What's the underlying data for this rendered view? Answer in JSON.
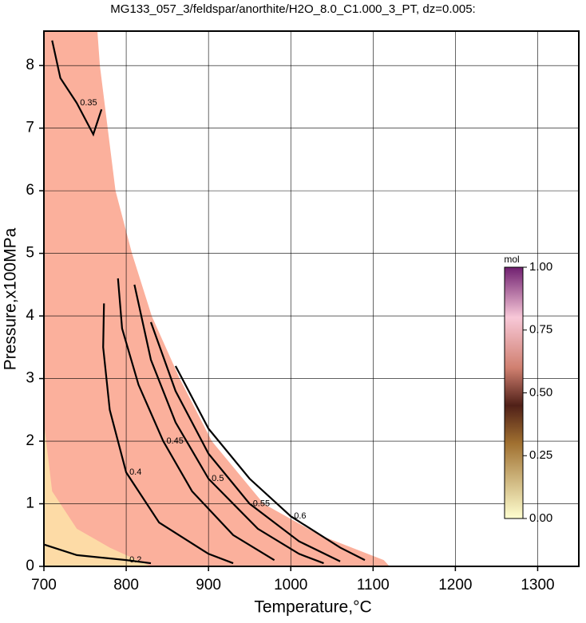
{
  "chart_data": {
    "type": "contour",
    "title": "MG133_057_3/feldspar/anorthite/H2O_8.0_C1.000_3_PT, dz=0.005:",
    "x_label": "Temperature,°C",
    "y_label": "Pressure,x100MPa",
    "xlim": [
      700,
      1350
    ],
    "ylim": [
      0,
      8.55
    ],
    "xticks": [
      700,
      800,
      900,
      1000,
      1100,
      1200,
      1300
    ],
    "yticks": [
      0,
      1,
      2,
      3,
      4,
      5,
      6,
      7,
      8
    ],
    "grid": true,
    "regions": [
      {
        "color": "#fbb09c",
        "x": [
          700,
          765,
          768,
          787,
          807,
          831,
          865,
          904,
          967,
          1035,
          1113,
          1120,
          700
        ],
        "y": [
          8.55,
          8.55,
          8,
          6,
          5,
          4,
          3,
          2,
          1,
          0.5,
          0.1,
          0,
          0
        ]
      },
      {
        "color": "#fddba6",
        "x": [
          700,
          700,
          710,
          740,
          780,
          830
        ],
        "y": [
          0,
          2.3,
          1.2,
          0.6,
          0.3,
          0
        ]
      }
    ],
    "contours": [
      {
        "level": 0.2,
        "x": [
          700,
          740,
          800,
          830
        ],
        "y": [
          0.35,
          0.18,
          0.1,
          0.05
        ]
      },
      {
        "level": 0.35,
        "x": [
          710,
          720,
          740,
          760,
          770
        ],
        "y": [
          8.4,
          7.8,
          7.4,
          6.9,
          7.3
        ]
      },
      {
        "level": 0.4,
        "x": [
          773,
          772,
          780,
          800,
          840,
          900,
          930
        ],
        "y": [
          4.2,
          3.5,
          2.5,
          1.5,
          0.7,
          0.2,
          0.05
        ]
      },
      {
        "level": 0.45,
        "x": [
          790,
          795,
          815,
          845,
          880,
          930,
          980
        ],
        "y": [
          4.6,
          3.8,
          2.9,
          2.0,
          1.2,
          0.5,
          0.1
        ]
      },
      {
        "level": 0.5,
        "x": [
          810,
          830,
          860,
          900,
          960,
          1010,
          1040
        ],
        "y": [
          4.5,
          3.3,
          2.3,
          1.4,
          0.6,
          0.2,
          0.05
        ]
      },
      {
        "level": 0.55,
        "x": [
          830,
          860,
          900,
          950,
          1010,
          1060
        ],
        "y": [
          3.9,
          2.8,
          1.8,
          1.0,
          0.4,
          0.08
        ]
      },
      {
        "level": 0.6,
        "x": [
          860,
          900,
          950,
          1000,
          1060,
          1090
        ],
        "y": [
          3.2,
          2.2,
          1.4,
          0.8,
          0.3,
          0.1
        ]
      }
    ],
    "colorbar": {
      "label": "mol",
      "lim": [
        0,
        1
      ],
      "ticks": [
        {
          "value": 0,
          "label": "0.00"
        },
        {
          "value": 0.25,
          "label": "0.25"
        },
        {
          "value": 0.5,
          "label": "0.50"
        },
        {
          "value": 0.75,
          "label": "0.75"
        },
        {
          "value": 1,
          "label": "1.00"
        }
      ]
    }
  }
}
